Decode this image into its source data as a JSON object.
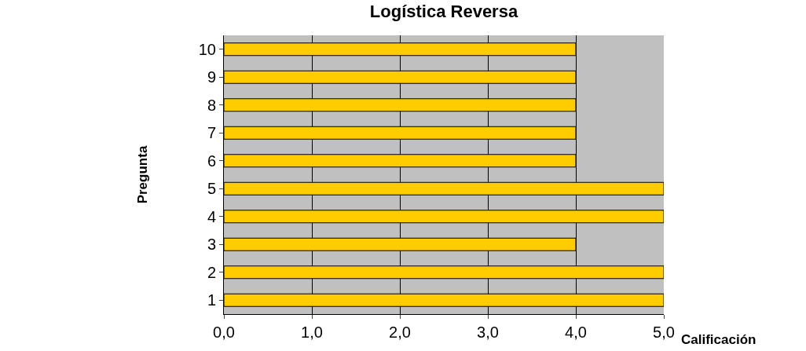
{
  "chart_data": {
    "type": "bar",
    "orientation": "horizontal",
    "title": "Logística Reversa",
    "xlabel": "Calificación",
    "ylabel": "Pregunta",
    "categories": [
      "10",
      "9",
      "8",
      "7",
      "6",
      "5",
      "4",
      "3",
      "2",
      "1"
    ],
    "values": [
      4,
      4,
      4,
      4,
      4,
      5,
      5,
      4,
      5,
      5
    ],
    "color": "#ffcc00",
    "xlim": [
      0,
      5
    ],
    "xticks": [
      {
        "value": 0,
        "label": "0,0"
      },
      {
        "value": 1,
        "label": "1,0"
      },
      {
        "value": 2,
        "label": "2,0"
      },
      {
        "value": 3,
        "label": "3,0"
      },
      {
        "value": 4,
        "label": "4,0"
      },
      {
        "value": 5,
        "label": "5,0"
      }
    ],
    "grid": "x"
  }
}
